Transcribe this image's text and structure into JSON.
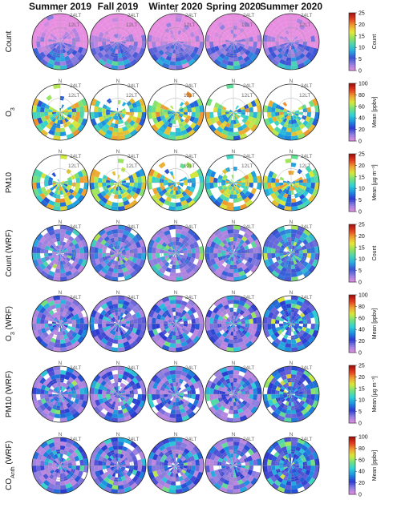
{
  "chart_data": {
    "type": "polar-heatmap-grid",
    "columns": [
      "Summer 2019",
      "Fall 2019",
      "Winter 2020",
      "Spring 2020",
      "Summer 2020"
    ],
    "polar_labels": {
      "north": "N",
      "midnight": "24LT",
      "noon": "12LT"
    },
    "rows": [
      {
        "label": "Count",
        "sub": "",
        "suffix": "",
        "cb_label": "Count",
        "ticks": [
          "0",
          "5",
          "10",
          "15",
          "20",
          "25"
        ],
        "scale": [
          0,
          25
        ],
        "colormap": "count",
        "panels": [
          "count_obs",
          "count_obs",
          "count_obs",
          "count_obs",
          "count_obs"
        ]
      },
      {
        "label": "O",
        "sub": "3",
        "suffix": "",
        "cb_label": "Mean [ppbv]",
        "ticks": [
          "0",
          "20",
          "40",
          "60",
          "80",
          "100"
        ],
        "scale": [
          0,
          100
        ],
        "colormap": "mean",
        "panels": [
          "partial",
          "partial",
          "partial",
          "partial",
          "partial"
        ]
      },
      {
        "label": "PM10",
        "sub": "",
        "suffix": "",
        "cb_label": "Mean [µg m⁻³]",
        "ticks": [
          "0",
          "5",
          "10",
          "15",
          "20",
          "25"
        ],
        "scale": [
          0,
          25
        ],
        "colormap": "mean",
        "panels": [
          "partial",
          "partial",
          "partial",
          "partial",
          "partial"
        ]
      },
      {
        "label": "Count (WRF)",
        "sub": "",
        "suffix": "",
        "cb_label": "Count",
        "ticks": [
          "0",
          "5",
          "10",
          "15",
          "20",
          "25"
        ],
        "scale": [
          0,
          25
        ],
        "colormap": "count",
        "panels": [
          "full",
          "full",
          "full",
          "full",
          "full"
        ]
      },
      {
        "label": "O",
        "sub": "3",
        "suffix": " (WRF)",
        "cb_label": "Mean [ppbv]",
        "ticks": [
          "0",
          "20",
          "40",
          "60",
          "80",
          "100"
        ],
        "scale": [
          0,
          100
        ],
        "colormap": "mean",
        "panels": [
          "full",
          "full",
          "full",
          "full",
          "full"
        ]
      },
      {
        "label": "PM10 (WRF)",
        "sub": "",
        "suffix": "",
        "cb_label": "Mean [µg m⁻³]",
        "ticks": [
          "0",
          "5",
          "10",
          "15",
          "20",
          "25"
        ],
        "scale": [
          0,
          25
        ],
        "colormap": "mean",
        "panels": [
          "full",
          "full",
          "full",
          "full",
          "full"
        ]
      },
      {
        "label": "CO",
        "sub": "Anth",
        "suffix": " (WRF)",
        "cb_label": "Mean [ppbv]",
        "ticks": [
          "0",
          "20",
          "40",
          "60",
          "80",
          "100"
        ],
        "scale": [
          0,
          100
        ],
        "colormap": "mean",
        "panels": [
          "full",
          "full",
          "full",
          "full",
          "full"
        ]
      }
    ],
    "colors": {
      "count_stops": [
        "#e78ee0",
        "#8f7fe0",
        "#3a52d6",
        "#2aa7e3",
        "#46d3b6",
        "#8fe060",
        "#e8e83a",
        "#f0a030",
        "#e04020",
        "#a01010"
      ],
      "mean_stops": [
        "#e78ee0",
        "#8f7fe0",
        "#2c3ad1",
        "#1c8fe0",
        "#30d0d8",
        "#70e080",
        "#d8ea3a",
        "#f0a030",
        "#e03a20",
        "#9a0c0c"
      ]
    }
  }
}
